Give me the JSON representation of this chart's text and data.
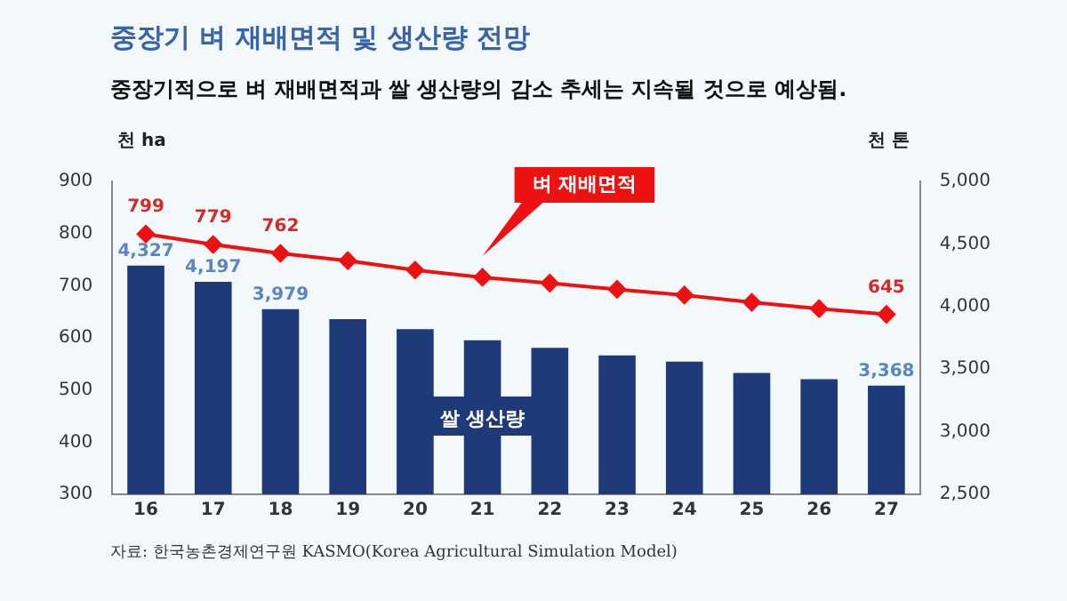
{
  "chart_data": {
    "type": "bar",
    "title": "중장기 벼 재배면적 및 생산량 전망",
    "subtitle": "중장기적으로 벼 재배면적과 쌀 생산량의 감소 추세는 지속될 것으로 예상됨.",
    "ylabel": "천 ha",
    "y2label": "천 톤",
    "categories": [
      "16",
      "17",
      "18",
      "19",
      "20",
      "21",
      "22",
      "23",
      "24",
      "25",
      "26",
      "27"
    ],
    "series": [
      {
        "name": "쌀 생산량",
        "axis": "y2",
        "color": "#1f3a78",
        "values": [
          4327,
          4197,
          3979,
          3900,
          3820,
          3730,
          3670,
          3610,
          3560,
          3470,
          3420,
          3368
        ],
        "value_labels": [
          "4,327",
          "4,197",
          "3,979",
          null,
          null,
          null,
          null,
          null,
          null,
          null,
          null,
          "3,368"
        ]
      },
      {
        "name": "벼 재배면적",
        "type": "line",
        "axis": "y",
        "color": "#ee1111",
        "marker": "diamond",
        "values": [
          799,
          779,
          762,
          748,
          730,
          716,
          705,
          693,
          682,
          668,
          656,
          645
        ],
        "value_labels": [
          "799",
          "779",
          "762",
          null,
          null,
          null,
          null,
          null,
          null,
          null,
          null,
          "645"
        ]
      }
    ],
    "ylim": [
      300,
      900
    ],
    "yticks": [
      300,
      400,
      500,
      600,
      700,
      800,
      900
    ],
    "y2lim": [
      2500,
      5000
    ],
    "y2ticks": [
      {
        "value": 2500,
        "label": "2,500"
      },
      {
        "value": 3000,
        "label": "3,000"
      },
      {
        "value": 3500,
        "label": "3,500"
      },
      {
        "value": 4000,
        "label": "4,000"
      },
      {
        "value": 4500,
        "label": "4,500"
      },
      {
        "value": 5000,
        "label": "5,000"
      }
    ],
    "grid": false,
    "legend": false,
    "annotations": [
      "자료: 한국농촌경제연구원 KASMO(Korea Agricultural Simulation Model)"
    ]
  }
}
